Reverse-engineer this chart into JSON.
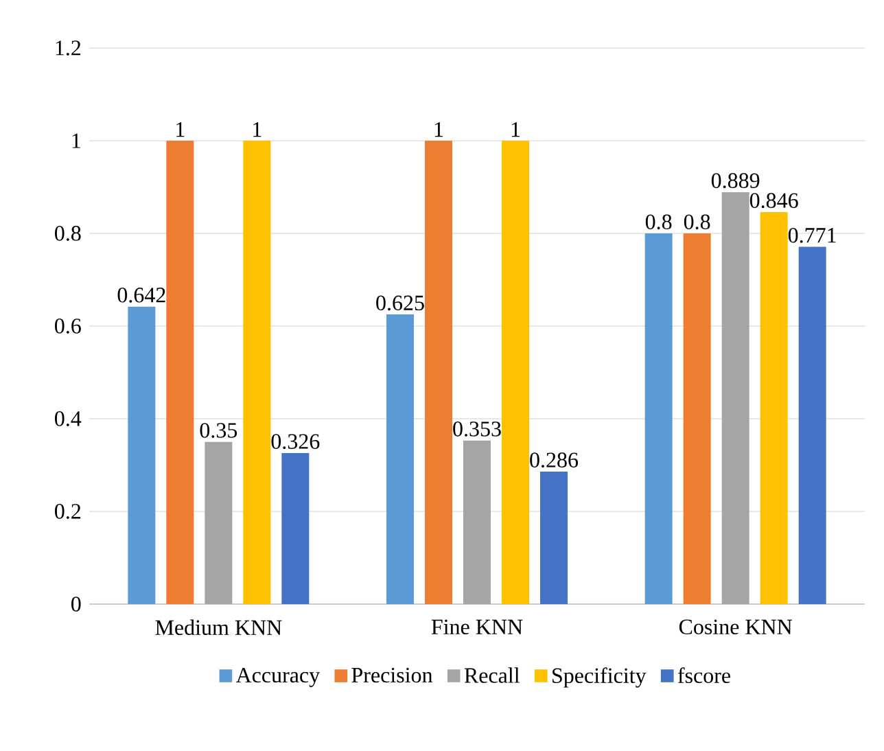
{
  "chart_data": {
    "type": "bar",
    "categories": [
      "Medium KNN",
      "Fine KNN",
      "Cosine KNN"
    ],
    "series": [
      {
        "name": "Accuracy",
        "color": "#5b9bd5",
        "values": [
          0.642,
          0.625,
          0.8
        ]
      },
      {
        "name": "Precision",
        "color": "#ed7d31",
        "values": [
          1,
          1,
          0.8
        ]
      },
      {
        "name": "Recall",
        "color": "#a5a5a5",
        "values": [
          0.35,
          0.353,
          0.889
        ]
      },
      {
        "name": "Specificity",
        "color": "#ffc000",
        "values": [
          1,
          1,
          0.846
        ]
      },
      {
        "name": "fscore",
        "color": "#4472c4",
        "values": [
          0.326,
          0.286,
          0.771
        ]
      }
    ],
    "ylim": [
      0,
      1.2
    ],
    "yticks": [
      0,
      0.2,
      0.4,
      0.6,
      0.8,
      1,
      1.2
    ],
    "grid": "y",
    "legend": "bottom",
    "data_labels": true
  }
}
